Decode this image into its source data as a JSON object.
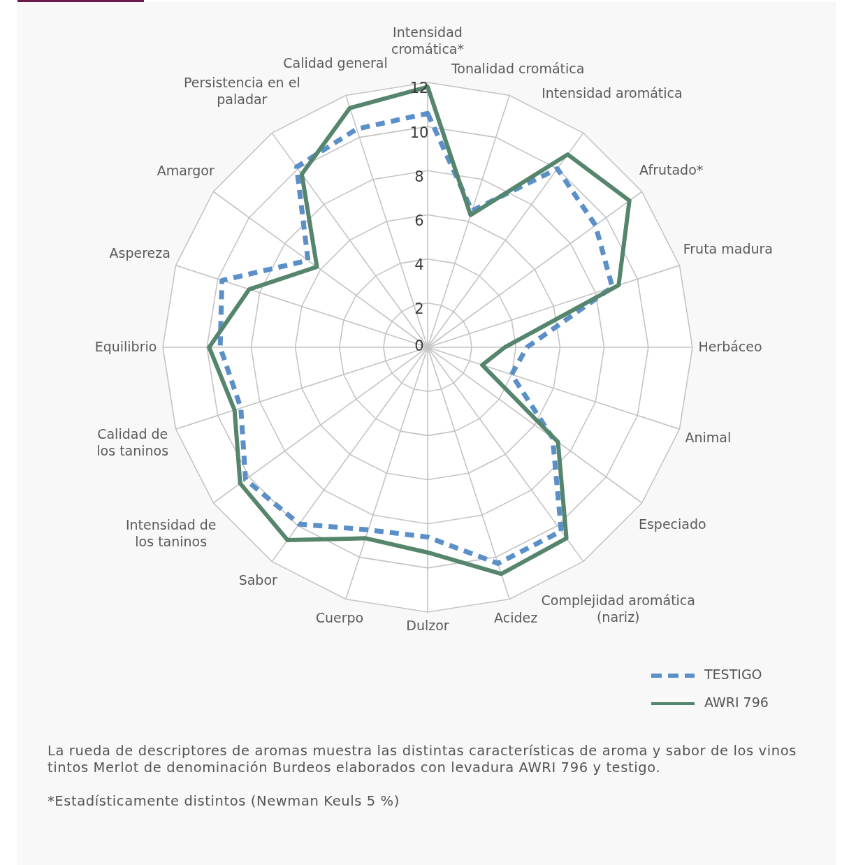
{
  "chart_data": {
    "type": "radar",
    "categories": [
      "Intensidad\ncromática*",
      "Tonalidad cromática",
      "Intensidad aromática",
      "Afrutado*",
      "Fruta madura",
      "Herbáceo",
      "Animal",
      "Especiado",
      "Complejidad aromática\n(nariz)",
      "Acidez",
      "Dulzor",
      "Cuerpo",
      "Sabor",
      "Intensidad de\nlos taninos",
      "Calidad de\nlos taninos",
      "Equilibrio",
      "Aspereza",
      "Amargor",
      "Persistencia en el\npaladar",
      "Calidad general"
    ],
    "series": [
      {
        "name": "TESTIGO",
        "color": "#5b8fc7",
        "line_style": "dashed",
        "values": [
          10.6,
          6.5,
          10.0,
          9.4,
          8.8,
          4.5,
          4.0,
          7.0,
          10.3,
          10.3,
          8.6,
          8.7,
          9.9,
          10.2,
          8.9,
          9.4,
          9.8,
          6.7,
          10.1,
          10.4
        ]
      },
      {
        "name": "AWRI 796",
        "color": "#55856c",
        "line_style": "solid",
        "values": [
          11.8,
          6.3,
          10.8,
          11.3,
          9.1,
          3.5,
          2.6,
          7.3,
          10.7,
          10.8,
          9.3,
          9.1,
          10.8,
          10.5,
          9.2,
          9.9,
          8.5,
          6.2,
          9.7,
          11.4
        ]
      }
    ],
    "ylim": [
      0,
      12
    ],
    "yticks": [
      0,
      2,
      4,
      6,
      8,
      10,
      12
    ],
    "grid": true,
    "marker": "none",
    "legend": "bottom right",
    "annotations": [
      "La rueda de descriptores de aromas muestra las distintas características de aroma y sabor de los vinos tintos Merlot de denominación Burdeos elaborados con levadura AWRI 796 y testigo.",
      "*Estadísticamente distintos (Newman Keuls 5 %)"
    ]
  }
}
